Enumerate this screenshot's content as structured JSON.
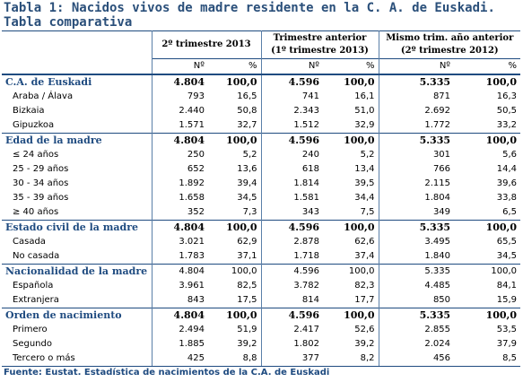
{
  "title": "Tabla 1: Nacidos vivos de madre residente en la C. A. de Euskadi. Tabla comparativa",
  "columns": {
    "g1": "2º trimestre 2013",
    "g2_line1": "Trimestre anterior",
    "g2_line2": "(1º trimestre 2013)",
    "g3_line1": "Mismo trim. año anterior",
    "g3_line2": "(2º trimestre 2012)",
    "n": "Nº",
    "pct": "%"
  },
  "rows": [
    {
      "label": "C.A. de Euskadi",
      "type": "section",
      "v": [
        "4.804",
        "100,0",
        "4.596",
        "100,0",
        "5.335",
        "100,0"
      ]
    },
    {
      "label": "Araba / Álava",
      "type": "item",
      "v": [
        "793",
        "16,5",
        "741",
        "16,1",
        "871",
        "16,3"
      ]
    },
    {
      "label": "Bizkaia",
      "type": "item",
      "v": [
        "2.440",
        "50,8",
        "2.343",
        "51,0",
        "2.692",
        "50,5"
      ]
    },
    {
      "label": "Gipuzkoa",
      "type": "item",
      "v": [
        "1.571",
        "32,7",
        "1.512",
        "32,9",
        "1.772",
        "33,2"
      ]
    },
    {
      "label": "Edad de la madre",
      "type": "section",
      "v": [
        "4.804",
        "100,0",
        "4.596",
        "100,0",
        "5.335",
        "100,0"
      ]
    },
    {
      "label": "≤ 24 años",
      "type": "item",
      "v": [
        "250",
        "5,2",
        "240",
        "5,2",
        "301",
        "5,6"
      ]
    },
    {
      "label": "25 - 29 años",
      "type": "item",
      "v": [
        "652",
        "13,6",
        "618",
        "13,4",
        "766",
        "14,4"
      ]
    },
    {
      "label": "30 - 34 años",
      "type": "item",
      "v": [
        "1.892",
        "39,4",
        "1.814",
        "39,5",
        "2.115",
        "39,6"
      ]
    },
    {
      "label": "35 - 39 años",
      "type": "item",
      "v": [
        "1.658",
        "34,5",
        "1.581",
        "34,4",
        "1.804",
        "33,8"
      ]
    },
    {
      "label": "≥ 40 años",
      "type": "item",
      "v": [
        "352",
        "7,3",
        "343",
        "7,5",
        "349",
        "6,5"
      ]
    },
    {
      "label": "Estado civil de la madre",
      "type": "section",
      "v": [
        "4.804",
        "100,0",
        "4.596",
        "100,0",
        "5.335",
        "100,0"
      ]
    },
    {
      "label": "Casada",
      "type": "item",
      "v": [
        "3.021",
        "62,9",
        "2.878",
        "62,6",
        "3.495",
        "65,5"
      ]
    },
    {
      "label": "No casada",
      "type": "item",
      "v": [
        "1.783",
        "37,1",
        "1.718",
        "37,4",
        "1.840",
        "34,5"
      ]
    },
    {
      "label": "Nacionalidad de la madre",
      "type": "section-plain",
      "v": [
        "4.804",
        "100,0",
        "4.596",
        "100,0",
        "5.335",
        "100,0"
      ]
    },
    {
      "label": "Española",
      "type": "item",
      "v": [
        "3.961",
        "82,5",
        "3.782",
        "82,3",
        "4.485",
        "84,1"
      ]
    },
    {
      "label": "Extranjera",
      "type": "item",
      "v": [
        "843",
        "17,5",
        "814",
        "17,7",
        "850",
        "15,9"
      ]
    },
    {
      "label": "Orden de nacimiento",
      "type": "section",
      "v": [
        "4.804",
        "100,0",
        "4.596",
        "100,0",
        "5.335",
        "100,0"
      ]
    },
    {
      "label": "Primero",
      "type": "item",
      "v": [
        "2.494",
        "51,9",
        "2.417",
        "52,6",
        "2.855",
        "53,5"
      ]
    },
    {
      "label": "Segundo",
      "type": "item",
      "v": [
        "1.885",
        "39,2",
        "1.802",
        "39,2",
        "2.024",
        "37,9"
      ]
    },
    {
      "label": "Tercero o más",
      "type": "item",
      "v": [
        "425",
        "8,8",
        "377",
        "8,2",
        "456",
        "8,5"
      ]
    }
  ],
  "source": "Fuente: Eustat. Estadística de nacimientos de la C.A. de Euskadi"
}
